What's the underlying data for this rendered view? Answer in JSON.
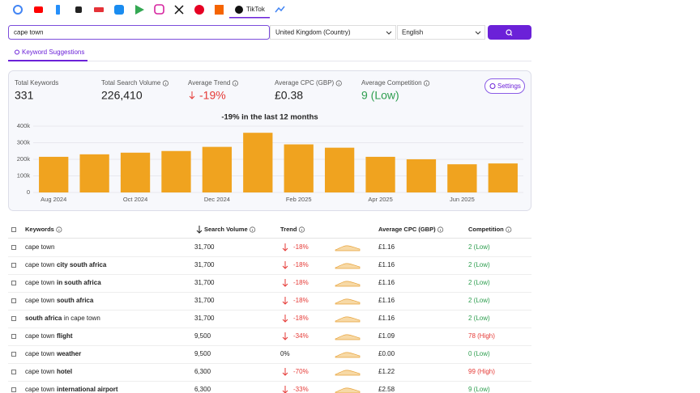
{
  "nav": {
    "active_tab": "TikTok"
  },
  "search": {
    "query": "cape town",
    "country": "United Kingdom (Country)",
    "language": "English"
  },
  "section_tab": "Keyword Suggestions",
  "stats": [
    {
      "label": "Total Keywords",
      "value": "331",
      "color": "#222222"
    },
    {
      "label": "Total Search Volume",
      "value": "226,410",
      "color": "#222222"
    },
    {
      "label": "Average Trend",
      "value": "-19%",
      "color": "#e53935"
    },
    {
      "label": "Average CPC (GBP)",
      "value": "£0.38",
      "color": "#222222"
    },
    {
      "label": "Average Competition",
      "value": "9 (Low)",
      "color": "#2e9e4f"
    }
  ],
  "settings_button": "Settings",
  "chart_data": {
    "type": "bar",
    "title": "-19% in the last 12 months",
    "categories": [
      "Aug 2024",
      null,
      "Oct 2024",
      null,
      "Dec 2024",
      null,
      "Feb 2025",
      null,
      "Apr 2025",
      null,
      "Jun 2025",
      null
    ],
    "values": [
      215000,
      230000,
      240000,
      250000,
      275000,
      360000,
      290000,
      270000,
      215000,
      200000,
      170000,
      175000
    ],
    "color": "#f0a31f",
    "ylim": [
      0,
      400000
    ],
    "yticks": [
      0,
      {
        "value": 100000,
        "label": "100k"
      },
      {
        "value": 200000,
        "label": "200k"
      },
      {
        "value": 300000,
        "label": "300k"
      },
      {
        "value": 400000,
        "label": "400k"
      }
    ],
    "grid": true
  },
  "table": {
    "headers": [
      "Keywords",
      "Search Volume",
      "Trend",
      "Average CPC (GBP)",
      "Competition"
    ],
    "rows": [
      {
        "keyword": [
          {
            "text": "cape town",
            "bold": false
          }
        ],
        "volume": "31,700",
        "trend": "-18%",
        "trend_color": "#e53935",
        "cpc": "£1.16",
        "competition": "2 (Low)",
        "competition_color": "#2e9e4f"
      },
      {
        "keyword": [
          {
            "text": "cape town",
            "bold": false
          },
          {
            "text": "city south africa",
            "bold": true
          }
        ],
        "volume": "31,700",
        "trend": "-18%",
        "trend_color": "#e53935",
        "cpc": "£1.16",
        "competition": "2 (Low)",
        "competition_color": "#2e9e4f"
      },
      {
        "keyword": [
          {
            "text": "cape town",
            "bold": false
          },
          {
            "text": "in south africa",
            "bold": true
          }
        ],
        "volume": "31,700",
        "trend": "-18%",
        "trend_color": "#e53935",
        "cpc": "£1.16",
        "competition": "2 (Low)",
        "competition_color": "#2e9e4f"
      },
      {
        "keyword": [
          {
            "text": "cape town",
            "bold": false
          },
          {
            "text": "south africa",
            "bold": true
          }
        ],
        "volume": "31,700",
        "trend": "-18%",
        "trend_color": "#e53935",
        "cpc": "£1.16",
        "competition": "2 (Low)",
        "competition_color": "#2e9e4f"
      },
      {
        "keyword": [
          {
            "text": "south africa",
            "bold": true
          },
          {
            "text": "in cape town",
            "bold": false
          }
        ],
        "volume": "31,700",
        "trend": "-18%",
        "trend_color": "#e53935",
        "cpc": "£1.16",
        "competition": "2 (Low)",
        "competition_color": "#2e9e4f"
      },
      {
        "keyword": [
          {
            "text": "cape town",
            "bold": false
          },
          {
            "text": "flight",
            "bold": true
          }
        ],
        "volume": "9,500",
        "trend": "-34%",
        "trend_color": "#e53935",
        "cpc": "£1.09",
        "competition": "78 (High)",
        "competition_color": "#e53935"
      },
      {
        "keyword": [
          {
            "text": "cape town",
            "bold": false
          },
          {
            "text": "weather",
            "bold": true
          }
        ],
        "volume": "9,500",
        "trend": "0%",
        "trend_color": "#222222",
        "cpc": "£0.00",
        "competition": "0 (Low)",
        "competition_color": "#2e9e4f"
      },
      {
        "keyword": [
          {
            "text": "cape town",
            "bold": false
          },
          {
            "text": "hotel",
            "bold": true
          }
        ],
        "volume": "6,300",
        "trend": "-70%",
        "trend_color": "#e53935",
        "cpc": "£1.22",
        "competition": "99 (High)",
        "competition_color": "#e53935"
      },
      {
        "keyword": [
          {
            "text": "cape town",
            "bold": false
          },
          {
            "text": "international airport",
            "bold": true
          }
        ],
        "volume": "6,300",
        "trend": "-33%",
        "trend_color": "#e53935",
        "cpc": "£2.58",
        "competition": "9 (Low)",
        "competition_color": "#2e9e4f"
      }
    ]
  }
}
